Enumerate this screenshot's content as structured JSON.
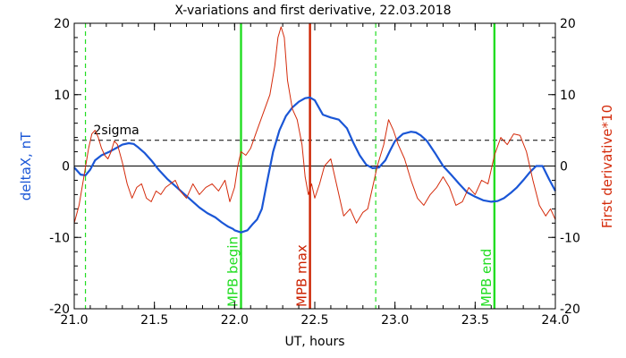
{
  "chart_data": {
    "type": "line",
    "title": "X-variations and first derivative, 22.03.2018",
    "xlabel": "UT, hours",
    "ylabel_left": "deltaX, nT",
    "ylabel_right": "First derivative*10",
    "xlim": [
      21.0,
      24.0
    ],
    "ylim": [
      -20,
      20
    ],
    "x_ticks": [
      "21.0",
      "21.5",
      "22.0",
      "22.5",
      "23.0",
      "23.5",
      "24.0"
    ],
    "y_ticks": [
      "-20",
      "-10",
      "0",
      "10",
      "20"
    ],
    "colors": {
      "deltax": "#1a56d6",
      "derivative": "#d42a0a",
      "mpb": "#22dd22",
      "max": "#cc2200",
      "sigma": "#000000"
    },
    "sigma": {
      "label": "2sigma",
      "value": 3.6
    },
    "markers": [
      {
        "name": "mpb-begin",
        "x": 22.04,
        "label": "MPB begin",
        "style": "solid",
        "color": "#22dd22"
      },
      {
        "name": "mpb-max",
        "x": 22.47,
        "label": "MPB max",
        "style": "solid",
        "color": "#cc2200"
      },
      {
        "name": "mpb-end",
        "x": 23.62,
        "label": "MPB end",
        "style": "solid",
        "color": "#22dd22"
      },
      {
        "name": "dashed-start",
        "x": 21.07,
        "label": "",
        "style": "dashed",
        "color": "#22dd22"
      },
      {
        "name": "dashed-mid",
        "x": 22.88,
        "label": "",
        "style": "dashed",
        "color": "#22dd22"
      }
    ],
    "series": [
      {
        "name": "deltaX",
        "axis": "left",
        "x": [
          21.0,
          21.04,
          21.07,
          21.1,
          21.13,
          21.17,
          21.22,
          21.26,
          21.3,
          21.34,
          21.37,
          21.4,
          21.44,
          21.48,
          21.53,
          21.58,
          21.63,
          21.68,
          21.73,
          21.78,
          21.83,
          21.88,
          21.92,
          21.96,
          21.99,
          22.0,
          22.04,
          22.08,
          22.11,
          22.14,
          22.17,
          22.2,
          22.24,
          22.28,
          22.32,
          22.36,
          22.4,
          22.44,
          22.47,
          22.5,
          22.53,
          22.55,
          22.6,
          22.65,
          22.7,
          22.74,
          22.78,
          22.82,
          22.86,
          22.9,
          22.94,
          22.97,
          23.0,
          23.05,
          23.1,
          23.13,
          23.16,
          23.2,
          23.25,
          23.3,
          23.35,
          23.4,
          23.45,
          23.5,
          23.55,
          23.6,
          23.64,
          23.68,
          23.72,
          23.76,
          23.8,
          23.84,
          23.88,
          23.92,
          23.96,
          24.0
        ],
        "y": [
          -0.2,
          -1.2,
          -1.3,
          -0.5,
          0.8,
          1.5,
          2.0,
          2.5,
          3.0,
          3.2,
          3.1,
          2.6,
          1.8,
          0.8,
          -0.6,
          -1.8,
          -2.8,
          -3.8,
          -4.8,
          -5.8,
          -6.6,
          -7.2,
          -7.9,
          -8.5,
          -8.8,
          -9.0,
          -9.3,
          -9.0,
          -8.2,
          -7.5,
          -6.0,
          -2.5,
          2.0,
          5.0,
          7.0,
          8.2,
          9.0,
          9.5,
          9.6,
          9.2,
          8.0,
          7.2,
          6.8,
          6.5,
          5.3,
          3.3,
          1.5,
          0.2,
          -0.3,
          -0.2,
          0.8,
          2.2,
          3.5,
          4.5,
          4.8,
          4.7,
          4.3,
          3.5,
          1.8,
          0.0,
          -1.2,
          -2.5,
          -3.7,
          -4.3,
          -4.8,
          -5.0,
          -4.9,
          -4.5,
          -3.8,
          -3.0,
          -2.0,
          -0.9,
          0.0,
          0.0,
          -1.8,
          -3.5
        ]
      },
      {
        "name": "First derivative*10",
        "axis": "right",
        "x": [
          21.0,
          21.03,
          21.06,
          21.09,
          21.11,
          21.13,
          21.15,
          21.17,
          21.19,
          21.21,
          21.23,
          21.25,
          21.27,
          21.3,
          21.33,
          21.36,
          21.39,
          21.42,
          21.45,
          21.48,
          21.51,
          21.54,
          21.57,
          21.6,
          21.63,
          21.66,
          21.7,
          21.74,
          21.78,
          21.82,
          21.86,
          21.9,
          21.94,
          21.97,
          22.0,
          22.02,
          22.04,
          22.07,
          22.1,
          22.14,
          22.18,
          22.22,
          22.25,
          22.27,
          22.29,
          22.31,
          22.33,
          22.36,
          22.39,
          22.42,
          22.44,
          22.46,
          22.48,
          22.5,
          22.53,
          22.56,
          22.6,
          22.64,
          22.68,
          22.72,
          22.76,
          22.8,
          22.83,
          22.86,
          22.89,
          22.91,
          22.93,
          22.96,
          22.99,
          23.02,
          23.06,
          23.1,
          23.14,
          23.18,
          23.22,
          23.26,
          23.3,
          23.34,
          23.38,
          23.42,
          23.46,
          23.5,
          23.54,
          23.58,
          23.62,
          23.66,
          23.7,
          23.74,
          23.78,
          23.82,
          23.86,
          23.9,
          23.94,
          23.97,
          24.0
        ],
        "y": [
          -8.0,
          -5.5,
          -1.5,
          2.5,
          4.5,
          5.0,
          4.0,
          2.5,
          1.5,
          1.0,
          2.0,
          3.5,
          3.0,
          0.5,
          -2.5,
          -4.5,
          -3.0,
          -2.5,
          -4.5,
          -5.0,
          -3.5,
          -4.0,
          -3.0,
          -2.5,
          -2.0,
          -3.5,
          -4.5,
          -2.5,
          -4.0,
          -3.0,
          -2.5,
          -3.5,
          -2.0,
          -5.0,
          -3.0,
          0.0,
          2.0,
          1.5,
          2.5,
          5.0,
          7.5,
          10.0,
          14.0,
          18.0,
          19.5,
          18.0,
          12.0,
          8.0,
          6.5,
          3.0,
          -1.5,
          -4.0,
          -2.5,
          -4.5,
          -2.5,
          0.0,
          1.0,
          -3.0,
          -7.0,
          -6.0,
          -8.0,
          -6.5,
          -6.0,
          -3.0,
          0.0,
          1.5,
          3.0,
          6.5,
          5.0,
          3.0,
          1.0,
          -2.0,
          -4.5,
          -5.5,
          -4.0,
          -3.0,
          -1.5,
          -3.0,
          -5.5,
          -5.0,
          -3.0,
          -4.0,
          -2.0,
          -2.5,
          1.5,
          4.0,
          3.0,
          4.5,
          4.3,
          2.0,
          -2.0,
          -5.5,
          -7.0,
          -6.0,
          -7.5
        ]
      }
    ]
  }
}
